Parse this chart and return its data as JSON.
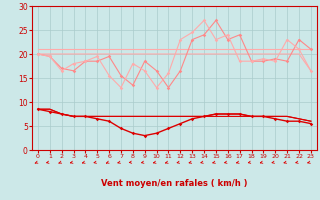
{
  "xlabel": "Vent moyen/en rafales ( km/h )",
  "bg_color": "#cce8e8",
  "grid_color": "#aacccc",
  "xlim": [
    -0.5,
    23.5
  ],
  "ylim": [
    0,
    30
  ],
  "yticks": [
    0,
    5,
    10,
    15,
    20,
    25,
    30
  ],
  "xticks": [
    0,
    1,
    2,
    3,
    4,
    5,
    6,
    7,
    8,
    9,
    10,
    11,
    12,
    13,
    14,
    15,
    16,
    17,
    18,
    19,
    20,
    21,
    22,
    23
  ],
  "line_rafales_top": [
    21,
    21,
    21,
    21,
    21,
    21,
    21,
    21,
    21,
    21,
    21,
    21,
    21,
    21,
    21,
    21,
    21,
    21,
    21,
    21,
    21,
    21,
    21,
    21
  ],
  "line_moyen_top": [
    20,
    20,
    20,
    20,
    20,
    20,
    20,
    20,
    20,
    20,
    20,
    20,
    20,
    20,
    20,
    20,
    20,
    20,
    20,
    20,
    20,
    20,
    20,
    16.5
  ],
  "line_rafales_vary": [
    20,
    19.5,
    17,
    16.5,
    18.5,
    18.5,
    19.5,
    15.5,
    13.5,
    18.5,
    16.5,
    13,
    16.5,
    23,
    24,
    27,
    23,
    24,
    18.5,
    18.5,
    19,
    18.5,
    23,
    21
  ],
  "line_moyen_vary": [
    20,
    19.5,
    16.5,
    18,
    18.5,
    19.5,
    15.5,
    13,
    18,
    16.5,
    13,
    16,
    23,
    24.5,
    27,
    23,
    24,
    18.5,
    18.5,
    19,
    18.5,
    23,
    21,
    16.5
  ],
  "line_vent_flat1": [
    8.5,
    8.5,
    7.5,
    7,
    7,
    7,
    7,
    7,
    7,
    7,
    7,
    7,
    7,
    7,
    7,
    7,
    7,
    7,
    7,
    7,
    7,
    7,
    6.5,
    6
  ],
  "line_vent_flat2": [
    8.5,
    8.5,
    7.5,
    7,
    7,
    7,
    7,
    7,
    7,
    7,
    7,
    7,
    7,
    7,
    7,
    7.5,
    7.5,
    7.5,
    7,
    7,
    7,
    7,
    6.5,
    6
  ],
  "line_vent_main": [
    8.5,
    8,
    7.5,
    7,
    7,
    6.5,
    6,
    4.5,
    3.5,
    3,
    3.5,
    4.5,
    5.5,
    6.5,
    7,
    7.5,
    7.5,
    7.5,
    7,
    7,
    6.5,
    6,
    6,
    5.5
  ],
  "color_light_pink": "#ffaaaa",
  "color_med_pink": "#ff8888",
  "color_dark_red": "#dd0000",
  "color_axis_text": "#cc0000",
  "color_spine": "#cc0000",
  "xlabel_fontsize": 6,
  "xlabel_fontweight": "bold",
  "tick_fontsize_x": 4.5,
  "tick_fontsize_y": 5.5
}
